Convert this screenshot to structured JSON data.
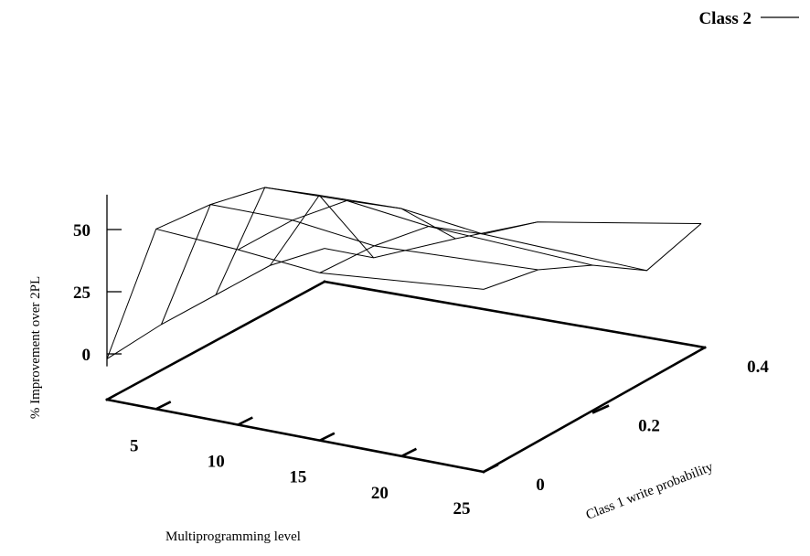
{
  "chart_data": {
    "type": "surface",
    "x": [
      2,
      5,
      10,
      15,
      25
    ],
    "y": [
      0,
      0.1,
      0.2,
      0.3,
      0.4
    ],
    "z": [
      [
        -2,
        54,
        52,
        49,
        55
      ],
      [
        0,
        52,
        52,
        48,
        51
      ],
      [
        0,
        47,
        48,
        44,
        41
      ],
      [
        0,
        32,
        33,
        29,
        27
      ],
      [
        -5,
        -5,
        9,
        22,
        34
      ]
    ],
    "series": [
      {
        "name": "Class 2"
      }
    ],
    "xlabel": "Multiprogramming level",
    "ylabel": "Class 1 write probability",
    "zlabel": "% Improvement over 2PL",
    "x_ticks": [
      "5",
      "10",
      "15",
      "20",
      "25"
    ],
    "y_ticks": [
      "0",
      "0.2",
      "0.4"
    ],
    "z_ticks": [
      "0",
      "25",
      "50"
    ],
    "xlim": [
      2,
      25
    ],
    "ylim": [
      0,
      0.4
    ],
    "zlim": [
      -5,
      55
    ],
    "legend_position": "top-right",
    "grid": false,
    "line_color": "#000000"
  }
}
